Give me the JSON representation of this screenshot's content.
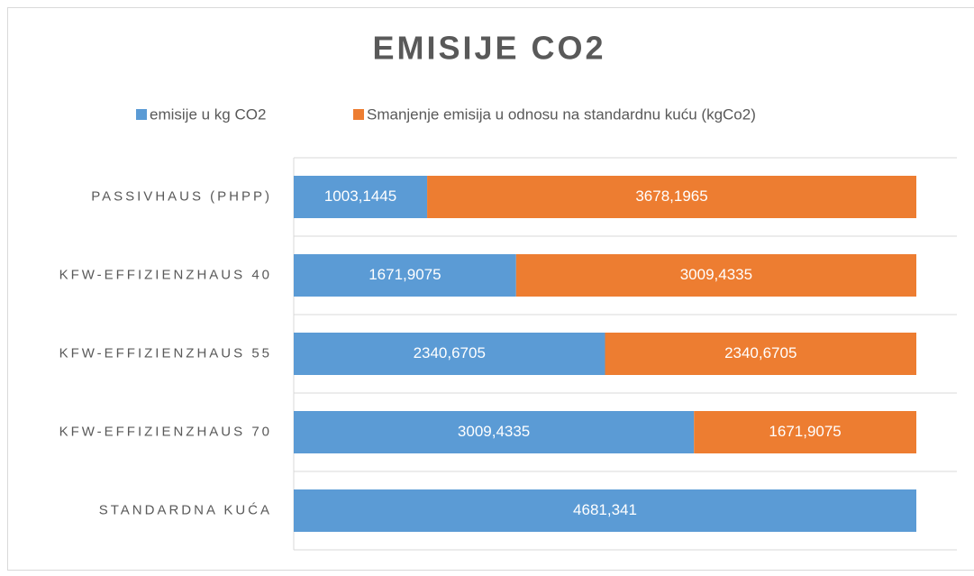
{
  "chart_data": {
    "type": "stacked_bar_horizontal",
    "title": "EMISIJE CO2",
    "categories": [
      "PASSIVHAUS (PHPP)",
      "KFW-EFFIZIENZHAUS 40",
      "KFW-EFFIZIENZHAUS 55",
      "KFW-EFFIZIENZHAUS 70",
      "STANDARDNA KUĆA"
    ],
    "series": [
      {
        "name": "emisije u kg CO2",
        "color": "#5b9bd5",
        "values": [
          1003.1445,
          1671.9075,
          2340.6705,
          3009.4335,
          4681.341
        ],
        "value_labels": [
          "1003,1445",
          "1671,9075",
          "2340,6705",
          "3009,4335",
          "4681,341"
        ]
      },
      {
        "name": "Smanjenje emisija u odnosu na standardnu kuću (kgCo2)",
        "color": "#ed7d31",
        "values": [
          3678.1965,
          3009.4335,
          2340.6705,
          1671.9075,
          null
        ],
        "value_labels": [
          "3678,1965",
          "3009,4335",
          "2340,6705",
          "1671,9075",
          null
        ]
      }
    ],
    "grid": true,
    "legend": "top"
  }
}
